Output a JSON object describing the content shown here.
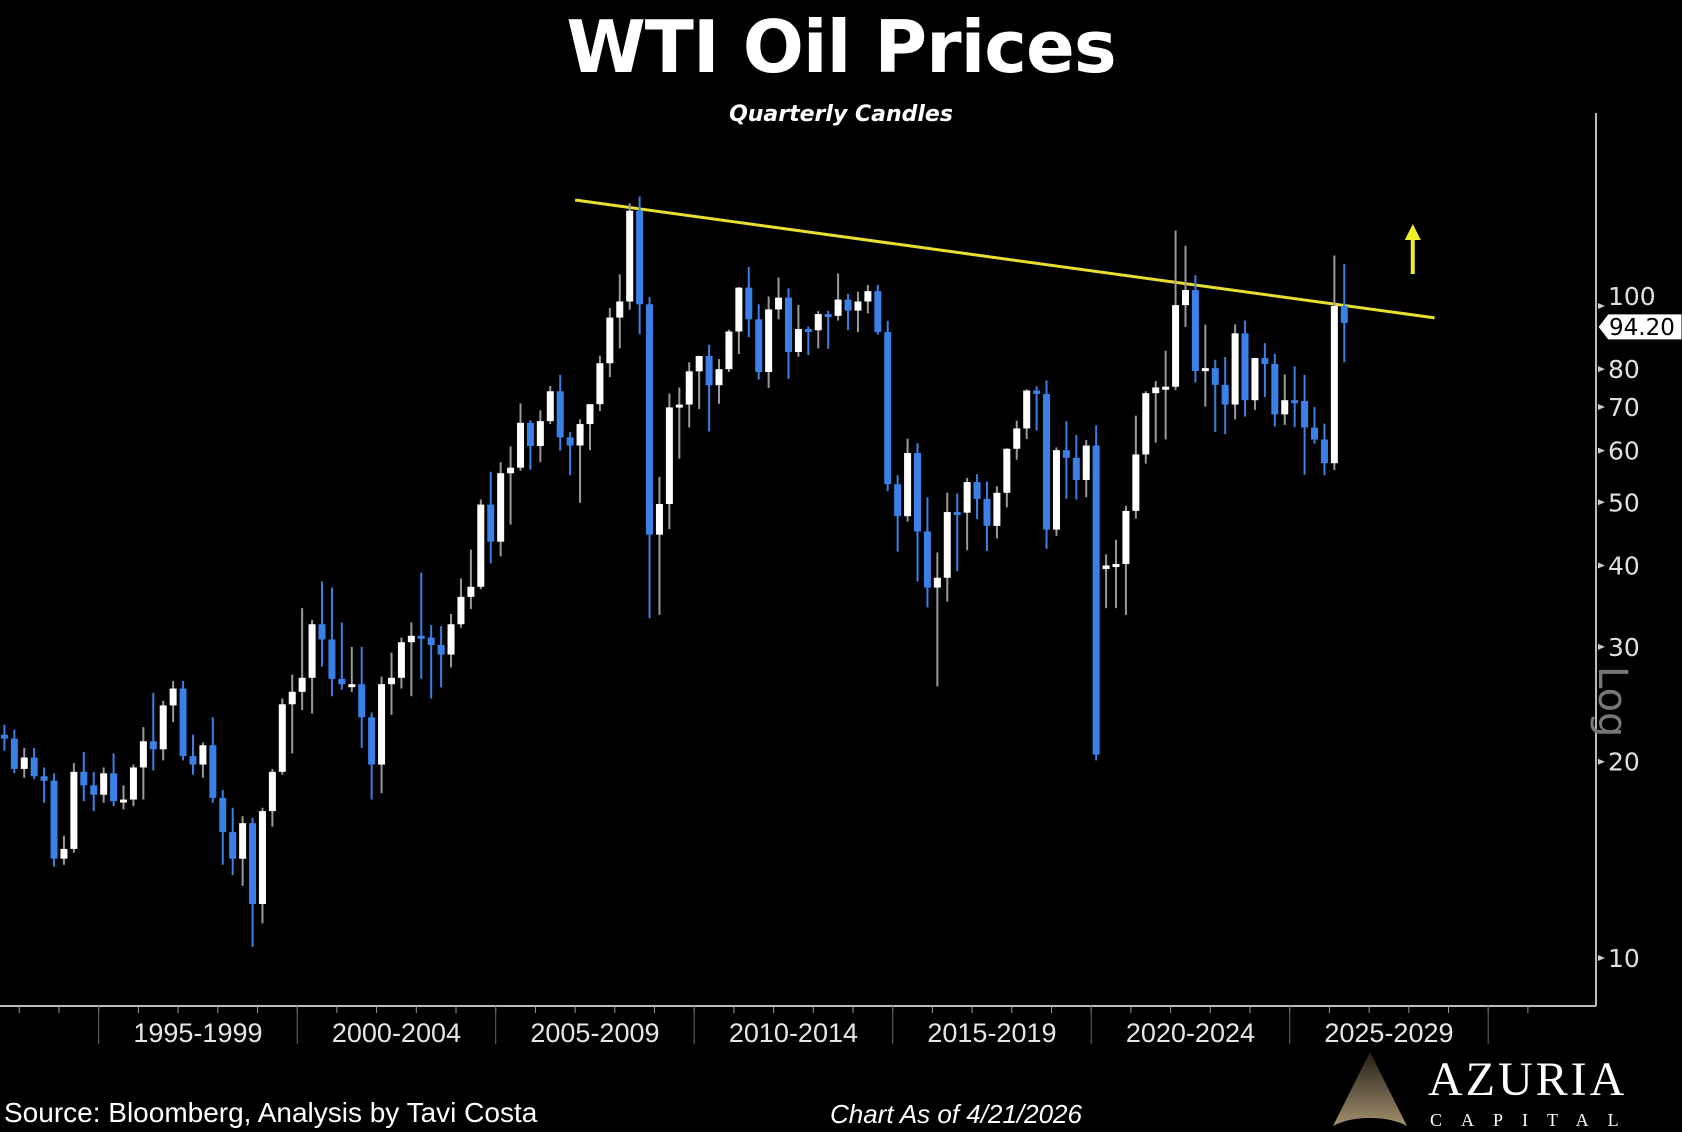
{
  "chart_data": {
    "type": "candlestick",
    "title": "WTI Oil Prices",
    "subtitle": "Quarterly Candles",
    "yscale": "log",
    "yscale_label": "Log",
    "ylim": [
      8.5,
      175
    ],
    "yticks": [
      10,
      20,
      30,
      40,
      50,
      60,
      70,
      80,
      100
    ],
    "ytick_labels": [
      "10",
      "20",
      "30",
      "40",
      "50",
      "60",
      "70",
      "80",
      "100"
    ],
    "xlim": [
      1992.5,
      2030.7
    ],
    "x_period_labels": [
      {
        "start": 1995,
        "label": "1995-1999"
      },
      {
        "start": 2000,
        "label": "2000-2004"
      },
      {
        "start": 2005,
        "label": "2005-2009"
      },
      {
        "start": 2010,
        "label": "2010-2014"
      },
      {
        "start": 2015,
        "label": "2015-2019"
      },
      {
        "start": 2020,
        "label": "2020-2024"
      },
      {
        "start": 2025,
        "label": "2025-2029"
      }
    ],
    "last_price_label": "94.20",
    "last_price": 94.2,
    "colors": {
      "up": "#ffffff",
      "down": "#3a80e6",
      "trendline": "#e8e030",
      "arrow": "#f2ee2a"
    },
    "first_quarter": "1992Q3",
    "ohlc_fields": [
      "open",
      "high",
      "low",
      "close"
    ],
    "ohlc": [
      [
        22,
        22.8,
        20.8,
        21.7
      ],
      [
        21.7,
        22.4,
        19.2,
        19.5
      ],
      [
        19.5,
        21,
        18.9,
        20.3
      ],
      [
        20.3,
        21,
        18.8,
        19.0
      ],
      [
        19.0,
        19.6,
        17.3,
        18.7
      ],
      [
        18.7,
        19.2,
        13.8,
        14.2
      ],
      [
        14.2,
        15.4,
        13.9,
        14.7
      ],
      [
        14.7,
        19.9,
        14.5,
        19.3
      ],
      [
        19.3,
        20.7,
        17.4,
        18.4
      ],
      [
        18.4,
        19.3,
        16.8,
        17.8
      ],
      [
        17.8,
        19.6,
        17.3,
        19.2
      ],
      [
        19.2,
        20.6,
        17.1,
        17.4
      ],
      [
        17.4,
        18.4,
        16.9,
        17.5
      ],
      [
        17.5,
        19.8,
        17.1,
        19.6
      ],
      [
        19.6,
        22.6,
        17.5,
        21.5
      ],
      [
        21.5,
        25.5,
        19.4,
        20.9
      ],
      [
        20.9,
        24.8,
        20.1,
        24.4
      ],
      [
        24.4,
        26.6,
        23.0,
        25.9
      ],
      [
        25.9,
        26.6,
        20.1,
        20.4
      ],
      [
        20.4,
        22.0,
        19.1,
        19.8
      ],
      [
        19.8,
        21.4,
        18.9,
        21.2
      ],
      [
        21.2,
        23.4,
        17.3,
        17.6
      ],
      [
        17.6,
        18.1,
        13.9,
        15.6
      ],
      [
        15.6,
        17.0,
        13.4,
        14.2
      ],
      [
        14.2,
        16.5,
        12.9,
        16.1
      ],
      [
        16.1,
        16.4,
        10.4,
        12.1
      ],
      [
        12.1,
        17.0,
        11.3,
        16.8
      ],
      [
        16.8,
        19.5,
        15.9,
        19.3
      ],
      [
        19.3,
        25.0,
        19.1,
        24.5
      ],
      [
        24.5,
        27.2,
        20.6,
        25.6
      ],
      [
        25.6,
        34.4,
        24.0,
        26.9
      ],
      [
        26.9,
        33.0,
        23.7,
        32.5
      ],
      [
        32.5,
        37.8,
        28.0,
        30.8
      ],
      [
        30.8,
        37.0,
        25.2,
        26.8
      ],
      [
        26.8,
        32.7,
        25.8,
        26.3
      ],
      [
        26.3,
        30.0,
        25.6,
        26.3
      ],
      [
        26.3,
        30.0,
        21.0,
        23.4
      ],
      [
        23.4,
        23.8,
        17.5,
        19.8
      ],
      [
        19.8,
        27.0,
        17.9,
        26.3
      ],
      [
        26.3,
        29.4,
        23.6,
        26.9
      ],
      [
        26.9,
        31.0,
        25.9,
        30.5
      ],
      [
        30.5,
        32.7,
        25.2,
        31.2
      ],
      [
        31.2,
        39.0,
        26.8,
        31.0
      ],
      [
        31.0,
        32.4,
        25.0,
        30.2
      ],
      [
        30.2,
        32.3,
        26.0,
        29.2
      ],
      [
        29.2,
        33.7,
        27.9,
        32.5
      ],
      [
        32.5,
        38.2,
        32.1,
        35.8
      ],
      [
        35.8,
        42.3,
        34.3,
        37.1
      ],
      [
        37.1,
        50.5,
        36.8,
        49.6
      ],
      [
        49.6,
        55.7,
        40.3,
        43.5
      ],
      [
        43.5,
        57.6,
        41.3,
        55.4
      ],
      [
        55.4,
        60.9,
        46.2,
        56.5
      ],
      [
        56.5,
        70.9,
        55.9,
        66.2
      ],
      [
        66.2,
        66.8,
        56.1,
        61.0
      ],
      [
        61.0,
        69.2,
        57.6,
        66.6
      ],
      [
        66.6,
        75.4,
        65.9,
        74.0
      ],
      [
        74.0,
        78.4,
        60.0,
        62.9
      ],
      [
        62.9,
        64.1,
        55.0,
        61.1
      ],
      [
        61.1,
        67.0,
        49.9,
        65.9
      ],
      [
        65.9,
        70.7,
        60.1,
        70.7
      ],
      [
        70.7,
        83.9,
        69.0,
        81.7
      ],
      [
        81.7,
        99.3,
        77.8,
        96.0
      ],
      [
        96.0,
        111.8,
        86.1,
        101.6
      ],
      [
        101.6,
        143.7,
        98.7,
        140.0
      ],
      [
        140.0,
        147.3,
        90.5,
        100.6
      ],
      [
        100.6,
        103.2,
        33.2,
        44.6
      ],
      [
        44.6,
        54.7,
        33.6,
        49.7
      ],
      [
        49.7,
        73.4,
        45.5,
        69.9
      ],
      [
        69.9,
        75.0,
        58.3,
        70.6
      ],
      [
        70.6,
        82.0,
        65.1,
        79.4
      ],
      [
        79.4,
        83.9,
        69.5,
        83.8
      ],
      [
        83.8,
        87.2,
        64.2,
        75.6
      ],
      [
        75.6,
        82.9,
        70.8,
        80.0
      ],
      [
        80.0,
        92.0,
        79.2,
        91.4
      ],
      [
        91.4,
        106.9,
        84.4,
        106.7
      ],
      [
        106.7,
        114.8,
        89.6,
        95.4
      ],
      [
        95.4,
        100.6,
        77.1,
        79.2
      ],
      [
        79.2,
        103.4,
        74.9,
        98.8
      ],
      [
        98.8,
        110.6,
        95.4,
        103.0
      ],
      [
        103.0,
        106.4,
        77.3,
        85.0
      ],
      [
        85.0,
        100.4,
        83.6,
        92.2
      ],
      [
        92.2,
        93.0,
        84.1,
        91.8
      ],
      [
        91.8,
        98.2,
        86.1,
        97.2
      ],
      [
        97.2,
        98.3,
        86.0,
        96.6
      ],
      [
        96.6,
        112.2,
        95.0,
        102.3
      ],
      [
        102.3,
        104.4,
        91.8,
        98.4
      ],
      [
        98.4,
        105.2,
        91.2,
        101.6
      ],
      [
        101.6,
        107.7,
        97.4,
        105.4
      ],
      [
        105.4,
        107.7,
        90.4,
        91.2
      ],
      [
        91.2,
        94.9,
        52.0,
        53.3
      ],
      [
        53.3,
        55.0,
        42.0,
        47.6
      ],
      [
        47.6,
        62.6,
        46.7,
        59.5
      ],
      [
        59.5,
        61.6,
        37.8,
        45.1
      ],
      [
        45.1,
        50.9,
        34.5,
        37.0
      ],
      [
        37.0,
        41.9,
        26.1,
        38.3
      ],
      [
        38.3,
        51.7,
        35.2,
        48.3
      ],
      [
        48.3,
        51.6,
        39.2,
        48.2
      ],
      [
        48.2,
        54.5,
        42.2,
        53.7
      ],
      [
        53.7,
        55.2,
        47.1,
        50.6
      ],
      [
        50.6,
        53.8,
        42.1,
        46.0
      ],
      [
        46.0,
        52.9,
        44.0,
        51.7
      ],
      [
        51.7,
        60.5,
        49.1,
        60.4
      ],
      [
        60.4,
        66.7,
        58.1,
        64.9
      ],
      [
        64.9,
        74.5,
        62.5,
        74.2
      ],
      [
        74.2,
        75.3,
        64.4,
        73.3
      ],
      [
        73.3,
        76.9,
        42.4,
        45.4
      ],
      [
        45.4,
        60.7,
        44.4,
        60.1
      ],
      [
        60.1,
        66.6,
        50.6,
        58.5
      ],
      [
        58.5,
        63.4,
        50.5,
        54.1
      ],
      [
        54.1,
        62.3,
        50.9,
        61.1
      ],
      [
        61.1,
        65.6,
        20.1,
        20.5
      ],
      [
        39.5,
        41.6,
        34.4,
        40.0
      ],
      [
        40.0,
        43.8,
        34.4,
        40.2
      ],
      [
        40.2,
        49.4,
        33.6,
        48.5
      ],
      [
        48.5,
        67.9,
        47.2,
        59.2
      ],
      [
        59.2,
        74.0,
        57.3,
        73.5
      ],
      [
        73.5,
        76.7,
        61.7,
        75.0
      ],
      [
        75.0,
        85.4,
        62.4,
        75.2
      ],
      [
        75.2,
        130.5,
        74.3,
        100.3
      ],
      [
        100.3,
        123.7,
        92.9,
        105.8
      ],
      [
        105.8,
        111.5,
        76.3,
        79.5
      ],
      [
        79.5,
        93.6,
        70.1,
        80.3
      ],
      [
        80.3,
        82.7,
        64.1,
        75.7
      ],
      [
        75.7,
        83.5,
        63.6,
        70.6
      ],
      [
        70.6,
        93.7,
        67.0,
        90.8
      ],
      [
        90.8,
        95.0,
        67.7,
        71.7
      ],
      [
        71.7,
        83.3,
        69.3,
        83.2
      ],
      [
        83.2,
        87.7,
        72.5,
        81.5
      ],
      [
        81.5,
        84.5,
        65.3,
        68.2
      ],
      [
        68.2,
        78.5,
        65.7,
        71.7
      ],
      [
        71.7,
        80.8,
        65.2,
        71.5
      ],
      [
        71.5,
        78.4,
        55.1,
        65.1
      ],
      [
        65.1,
        70.0,
        61.5,
        62.4
      ],
      [
        62.4,
        66.0,
        55.0,
        57.4
      ],
      [
        57.4,
        119.5,
        56.0,
        100.0
      ],
      [
        100.0,
        116.0,
        82.0,
        94.2
      ]
    ],
    "trendline": {
      "from": {
        "year": 2007.0,
        "price": 145.4
      },
      "to": {
        "year": 2028.65,
        "price": 95.9
      }
    },
    "annotations": [
      {
        "type": "arrow-up",
        "year": 2028.1
      }
    ]
  },
  "footer": {
    "source": "Source: Bloomberg, Analysis by Tavi Costa",
    "as_of": "Chart As of 4/21/2026"
  },
  "logo": {
    "name": "AZURIA",
    "sub": "CAPITAL"
  }
}
